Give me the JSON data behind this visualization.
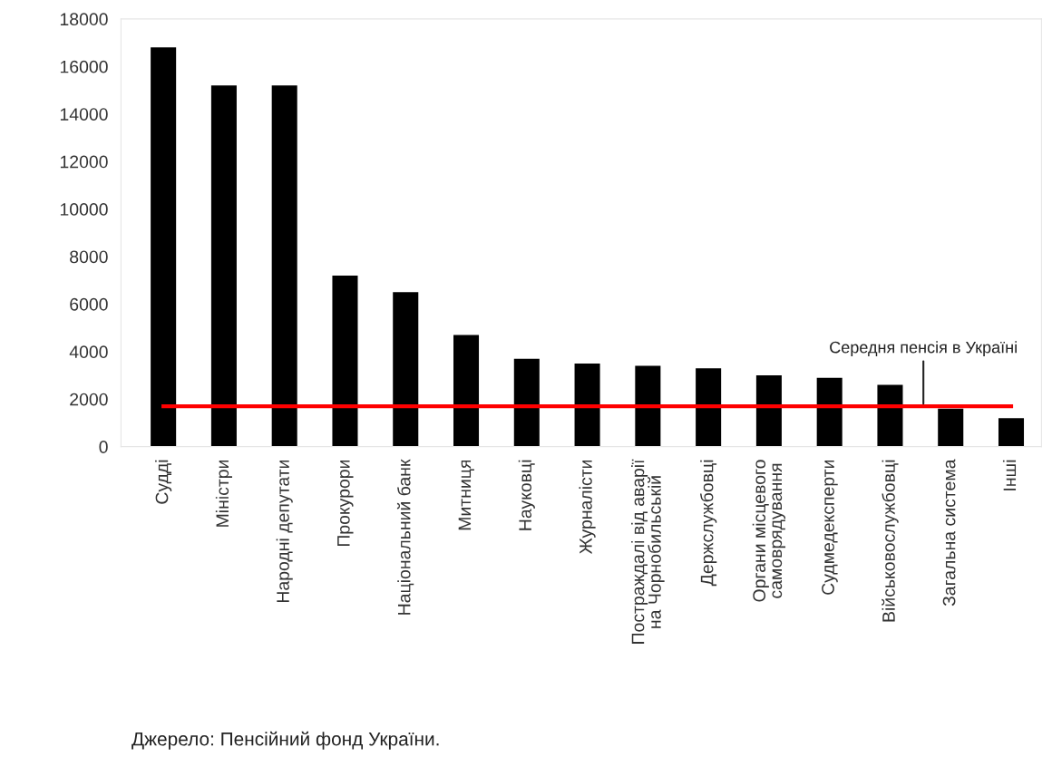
{
  "chart_data": {
    "type": "bar",
    "categories": [
      "Судді",
      "Міністри",
      "Народні депутати",
      "Прокурори",
      "Національний банк",
      "Митниця",
      "Науковці",
      "Журналісти",
      "Постраждалі від аварії\nна Чорнобильській",
      "Держслужбовці",
      "Органи місцевого\nсамоврядування",
      "Судмедексперти",
      "Військовослужбовці",
      "Загальна система",
      "Інші"
    ],
    "values": [
      16800,
      15200,
      15200,
      7200,
      6500,
      4700,
      3700,
      3500,
      3400,
      3300,
      3000,
      2900,
      2600,
      1600,
      1200
    ],
    "color": "#000000",
    "ylim": [
      0,
      18000
    ],
    "yticks": [
      0,
      2000,
      4000,
      6000,
      8000,
      10000,
      12000,
      14000,
      16000,
      18000
    ],
    "ref_lines": [
      {
        "axis": "y",
        "value": 1700,
        "label": "Середня пенсія в Україні",
        "color": "#ff0000"
      }
    ],
    "annotations": [
      "Джерело: Пенсійний фонд України."
    ],
    "grid": false
  }
}
